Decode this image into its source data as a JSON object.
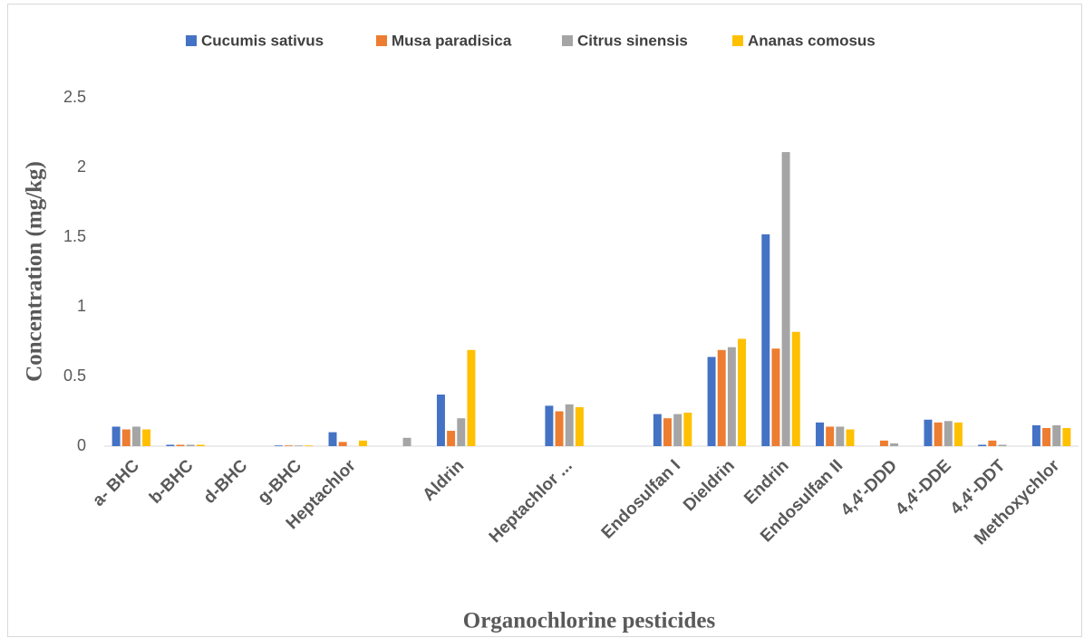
{
  "chart_data": {
    "type": "bar",
    "x_label": "Organochlorine pesticides",
    "y_label": "Concentration (mg/kg)",
    "categories": [
      "a- BHC",
      "b-BHC",
      "d-BHC",
      "g-BHC",
      "Heptachlor",
      null,
      "Aldrin",
      null,
      "Heptachlor ...",
      null,
      "Endosulfan I",
      "Dieldrin",
      "Endrin",
      "Endosulfan II",
      "4,4'-DDD",
      "4,4'-DDE",
      "4,4'-DDT",
      "Methoxychlor"
    ],
    "series": [
      {
        "name": "Cucumis sativus",
        "color": "#4472c4",
        "values": [
          0.14,
          0.01,
          0,
          0.005,
          0.1,
          0,
          0.37,
          0,
          0.29,
          0,
          0.23,
          0.64,
          1.52,
          0.17,
          0,
          0.19,
          0.01,
          0.15
        ]
      },
      {
        "name": "Musa paradisica",
        "color": "#ed7d31",
        "values": [
          0.12,
          0.01,
          0,
          0.005,
          0.03,
          0,
          0.11,
          0,
          0.25,
          0,
          0.2,
          0.69,
          0.7,
          0.14,
          0.04,
          0.17,
          0.04,
          0.13
        ]
      },
      {
        "name": "Citrus sinensis",
        "color": "#a5a5a5",
        "values": [
          0.14,
          0.01,
          0,
          0.005,
          0,
          0.06,
          0.2,
          0,
          0.3,
          0,
          0.23,
          0.71,
          2.11,
          0.14,
          0.02,
          0.18,
          0.01,
          0.15
        ]
      },
      {
        "name": "Ananas comosus",
        "color": "#ffc000",
        "values": [
          0.12,
          0.01,
          0,
          0.005,
          0.04,
          0,
          0.69,
          0,
          0.28,
          0,
          0.24,
          0.77,
          0.82,
          0.12,
          0,
          0.17,
          0,
          0.13
        ]
      }
    ],
    "ylim": [
      0,
      2.5
    ],
    "yticks": [
      0,
      0.5,
      1,
      1.5,
      2,
      2.5
    ],
    "grid": false,
    "legend": "top"
  }
}
